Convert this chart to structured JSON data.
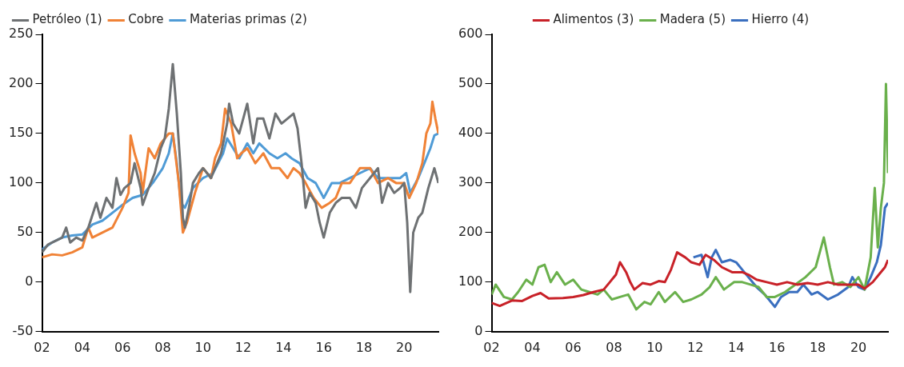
{
  "chart_data": [
    {
      "type": "line",
      "legend": "top left",
      "xlim": [
        2002,
        2021.7
      ],
      "xticks": [
        {
          "value": 2002,
          "label": "02"
        },
        {
          "value": 2004,
          "label": "04"
        },
        {
          "value": 2006,
          "label": "06"
        },
        {
          "value": 2008,
          "label": "08"
        },
        {
          "value": 2010,
          "label": "10"
        },
        {
          "value": 2012,
          "label": "12"
        },
        {
          "value": 2014,
          "label": "14"
        },
        {
          "value": 2016,
          "label": "16"
        },
        {
          "value": 2018,
          "label": "18"
        },
        {
          "value": 2020,
          "label": "20"
        }
      ],
      "ylim": [
        -50,
        250
      ],
      "yticks": [
        -50,
        0,
        50,
        100,
        150,
        200,
        250
      ],
      "series": [
        {
          "name": "Petróleo (1)",
          "color": "#6e7173",
          "x": [
            2002.0,
            2002.3,
            2002.7,
            2003.0,
            2003.2,
            2003.4,
            2003.7,
            2004.0,
            2004.3,
            2004.7,
            2004.9,
            2005.2,
            2005.5,
            2005.7,
            2005.9,
            2006.1,
            2006.4,
            2006.6,
            2006.9,
            2007.0,
            2007.3,
            2007.6,
            2007.9,
            2008.1,
            2008.3,
            2008.5,
            2008.7,
            2008.9,
            2009.0,
            2009.1,
            2009.3,
            2009.5,
            2009.8,
            2010.0,
            2010.4,
            2010.6,
            2010.9,
            2011.2,
            2011.3,
            2011.5,
            2011.8,
            2012.0,
            2012.2,
            2012.5,
            2012.7,
            2013.0,
            2013.3,
            2013.6,
            2013.9,
            2014.2,
            2014.5,
            2014.7,
            2014.9,
            2015.1,
            2015.3,
            2015.6,
            2015.8,
            2016.0,
            2016.3,
            2016.6,
            2016.9,
            2017.3,
            2017.6,
            2017.9,
            2018.3,
            2018.7,
            2018.9,
            2019.2,
            2019.5,
            2019.8,
            2020.0,
            2020.15,
            2020.3,
            2020.45,
            2020.7,
            2020.9,
            2021.2,
            2021.5,
            2021.7
          ],
          "values": [
            30,
            38,
            42,
            45,
            55,
            40,
            45,
            42,
            55,
            80,
            65,
            85,
            75,
            105,
            88,
            95,
            100,
            120,
            95,
            78,
            95,
            110,
            135,
            145,
            175,
            220,
            170,
            110,
            65,
            55,
            75,
            100,
            110,
            115,
            105,
            115,
            130,
            160,
            180,
            160,
            150,
            165,
            180,
            140,
            165,
            165,
            145,
            170,
            160,
            165,
            170,
            155,
            120,
            75,
            90,
            80,
            60,
            45,
            70,
            80,
            85,
            85,
            75,
            95,
            105,
            115,
            80,
            100,
            90,
            95,
            100,
            60,
            -10,
            50,
            65,
            70,
            95,
            115,
            100
          ]
        },
        {
          "name": "Cobre",
          "color": "#f08236",
          "x": [
            2002.0,
            2002.5,
            2003.0,
            2003.5,
            2004.0,
            2004.3,
            2004.5,
            2005.0,
            2005.5,
            2006.0,
            2006.3,
            2006.4,
            2006.6,
            2006.9,
            2007.0,
            2007.3,
            2007.6,
            2007.9,
            2008.3,
            2008.5,
            2008.8,
            2009.0,
            2009.2,
            2009.6,
            2010.0,
            2010.4,
            2010.6,
            2010.9,
            2011.1,
            2011.4,
            2011.7,
            2011.9,
            2012.2,
            2012.6,
            2013.0,
            2013.4,
            2013.8,
            2014.2,
            2014.5,
            2014.8,
            2015.1,
            2015.5,
            2015.9,
            2016.3,
            2016.6,
            2016.9,
            2017.3,
            2017.8,
            2018.3,
            2018.7,
            2019.2,
            2019.6,
            2020.0,
            2020.25,
            2020.6,
            2020.9,
            2021.1,
            2021.3,
            2021.4,
            2021.55,
            2021.7
          ],
          "values": [
            25,
            28,
            27,
            30,
            35,
            55,
            45,
            50,
            55,
            75,
            90,
            148,
            130,
            110,
            90,
            135,
            125,
            140,
            150,
            150,
            100,
            50,
            60,
            90,
            115,
            105,
            125,
            140,
            175,
            160,
            125,
            130,
            135,
            120,
            130,
            115,
            115,
            105,
            115,
            110,
            100,
            85,
            75,
            80,
            85,
            100,
            100,
            115,
            115,
            100,
            105,
            100,
            100,
            85,
            100,
            120,
            150,
            160,
            182,
            165,
            150
          ]
        },
        {
          "name": "Materias primas (2)",
          "color": "#4f9bd6",
          "x": [
            2002.0,
            2002.5,
            2003.0,
            2003.5,
            2004.0,
            2004.5,
            2005.0,
            2005.5,
            2006.0,
            2006.5,
            2007.0,
            2007.5,
            2008.0,
            2008.3,
            2008.5,
            2008.7,
            2008.9,
            2009.1,
            2009.5,
            2010.0,
            2010.5,
            2011.0,
            2011.2,
            2011.5,
            2011.8,
            2012.2,
            2012.5,
            2012.8,
            2013.3,
            2013.7,
            2014.1,
            2014.4,
            2014.8,
            2015.2,
            2015.6,
            2016.0,
            2016.4,
            2016.8,
            2017.3,
            2017.8,
            2018.3,
            2018.7,
            2019.3,
            2019.8,
            2020.1,
            2020.3,
            2020.7,
            2021.0,
            2021.3,
            2021.5,
            2021.7
          ],
          "values": [
            33,
            40,
            45,
            47,
            48,
            58,
            62,
            70,
            78,
            85,
            88,
            100,
            115,
            130,
            150,
            120,
            80,
            75,
            95,
            105,
            110,
            130,
            145,
            135,
            125,
            140,
            130,
            140,
            130,
            125,
            130,
            125,
            120,
            105,
            100,
            85,
            100,
            100,
            105,
            110,
            115,
            105,
            105,
            105,
            110,
            90,
            105,
            120,
            135,
            148,
            150
          ]
        }
      ]
    },
    {
      "type": "line",
      "legend": "top",
      "xlim": [
        2002,
        2021.45
      ],
      "xticks": [
        {
          "value": 2002,
          "label": "02"
        },
        {
          "value": 2004,
          "label": "04"
        },
        {
          "value": 2006,
          "label": "06"
        },
        {
          "value": 2008,
          "label": "08"
        },
        {
          "value": 2010,
          "label": "10"
        },
        {
          "value": 2012,
          "label": "12"
        },
        {
          "value": 2014,
          "label": "14"
        },
        {
          "value": 2016,
          "label": "16"
        },
        {
          "value": 2018,
          "label": "18"
        },
        {
          "value": 2020,
          "label": "20"
        }
      ],
      "ylim": [
        0,
        600
      ],
      "yticks": [
        0,
        100,
        200,
        300,
        400,
        500,
        600
      ],
      "series": [
        {
          "name": "Alimentos (3)",
          "color": "#c82128",
          "x": [
            2002.0,
            2002.4,
            2003.0,
            2003.5,
            2004.0,
            2004.4,
            2004.8,
            2005.5,
            2006.0,
            2006.5,
            2007.0,
            2007.5,
            2007.8,
            2008.1,
            2008.3,
            2008.6,
            2008.8,
            2009.0,
            2009.4,
            2009.8,
            2010.2,
            2010.5,
            2010.8,
            2011.1,
            2011.5,
            2011.8,
            2012.2,
            2012.5,
            2012.9,
            2013.3,
            2013.8,
            2014.3,
            2014.6,
            2015.0,
            2015.5,
            2016.0,
            2016.5,
            2017.0,
            2017.5,
            2018.0,
            2018.5,
            2019.0,
            2019.5,
            2020.0,
            2020.3,
            2020.7,
            2021.0,
            2021.3,
            2021.45
          ],
          "values": [
            58,
            52,
            63,
            62,
            72,
            78,
            67,
            68,
            70,
            74,
            80,
            85,
            100,
            115,
            140,
            120,
            100,
            85,
            98,
            95,
            102,
            100,
            125,
            160,
            150,
            140,
            135,
            155,
            145,
            130,
            120,
            120,
            115,
            105,
            100,
            95,
            100,
            95,
            98,
            95,
            100,
            95,
            95,
            95,
            87,
            100,
            115,
            130,
            145
          ]
        },
        {
          "name": "Madera (5)",
          "color": "#6ab04c",
          "x": [
            2002.0,
            2002.2,
            2002.6,
            2003.0,
            2003.3,
            2003.7,
            2004.0,
            2004.3,
            2004.6,
            2004.9,
            2005.2,
            2005.6,
            2006.0,
            2006.4,
            2006.8,
            2007.2,
            2007.5,
            2007.9,
            2008.3,
            2008.7,
            2009.1,
            2009.5,
            2009.8,
            2010.2,
            2010.5,
            2011.0,
            2011.4,
            2011.8,
            2012.3,
            2012.7,
            2013.0,
            2013.4,
            2013.9,
            2014.3,
            2014.7,
            2015.1,
            2015.5,
            2015.9,
            2016.4,
            2016.9,
            2017.4,
            2017.9,
            2018.3,
            2018.6,
            2018.8,
            2019.2,
            2019.6,
            2020.0,
            2020.3,
            2020.6,
            2020.8,
            2020.95,
            2021.1,
            2021.25,
            2021.35,
            2021.45
          ],
          "values": [
            75,
            95,
            70,
            65,
            80,
            105,
            95,
            130,
            135,
            100,
            120,
            95,
            105,
            85,
            80,
            75,
            85,
            65,
            70,
            75,
            45,
            60,
            55,
            80,
            60,
            80,
            60,
            65,
            75,
            90,
            110,
            85,
            100,
            100,
            95,
            90,
            70,
            70,
            80,
            95,
            110,
            130,
            190,
            130,
            95,
            100,
            90,
            110,
            85,
            150,
            290,
            170,
            250,
            300,
            500,
            320
          ]
        },
        {
          "name": "Hierro (4)",
          "color": "#3a6fbf",
          "x": [
            2011.9,
            2012.3,
            2012.6,
            2012.8,
            2013.0,
            2013.3,
            2013.7,
            2014.0,
            2014.3,
            2014.6,
            2015.0,
            2015.4,
            2015.9,
            2016.2,
            2016.6,
            2017.0,
            2017.3,
            2017.7,
            2018.0,
            2018.5,
            2019.0,
            2019.5,
            2019.7,
            2020.0,
            2020.3,
            2020.6,
            2020.9,
            2021.1,
            2021.3,
            2021.45
          ],
          "values": [
            150,
            155,
            110,
            150,
            165,
            140,
            145,
            140,
            125,
            110,
            90,
            75,
            50,
            70,
            80,
            80,
            95,
            75,
            80,
            65,
            75,
            90,
            110,
            90,
            85,
            110,
            140,
            175,
            250,
            260
          ]
        }
      ]
    }
  ]
}
